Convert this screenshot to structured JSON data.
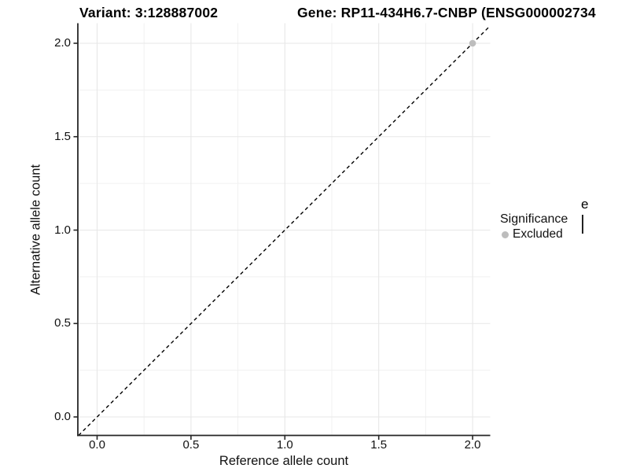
{
  "titles": {
    "variant": "Variant: 3:128887002",
    "gene": "Gene: RP11-434H6.7-CNBP (ENSG000002734"
  },
  "axes": {
    "x": {
      "label": "Reference allele count",
      "tick_labels": [
        "0.0",
        "0.5",
        "1.0",
        "1.5",
        "2.0"
      ]
    },
    "y": {
      "label": "Alternative allele count",
      "tick_labels": [
        "0.0",
        "0.5",
        "1.0",
        "1.5",
        "2.0"
      ]
    }
  },
  "legend": {
    "title": "Significance",
    "items": [
      {
        "label": "Excluded",
        "color": "#bdbdbd"
      }
    ],
    "position": "right"
  },
  "fragments": {
    "clipped_text": "e"
  },
  "colors": {
    "background": "#ffffff",
    "point": "#bdbdbd",
    "axis": "#262626",
    "grid_major": "#e7e7e7",
    "grid_minor": "#f1f1f1",
    "reference_line": "#000000",
    "text": "#111111"
  },
  "chart_data": {
    "type": "scatter",
    "title": "Variant: 3:128887002",
    "title_right": "Gene: RP11-434H6.7-CNBP (ENSG000002734",
    "xlabel": "Reference allele count",
    "ylabel": "Alternative allele count",
    "xlim": [
      -0.1,
      2.1
    ],
    "ylim": [
      -0.1,
      2.1
    ],
    "x_ticks": [
      0,
      0.5,
      1,
      1.5,
      2
    ],
    "y_ticks": [
      0,
      0.5,
      1,
      1.5,
      2
    ],
    "grid": "major+minor",
    "legend_position": "right",
    "series": [
      {
        "name": "Excluded",
        "color": "#bdbdbd",
        "marker": "circle",
        "points": [
          [
            2,
            2
          ]
        ]
      }
    ],
    "reference_line": {
      "slope": 1,
      "intercept": 0,
      "style": "dashed",
      "color": "#000000"
    }
  }
}
